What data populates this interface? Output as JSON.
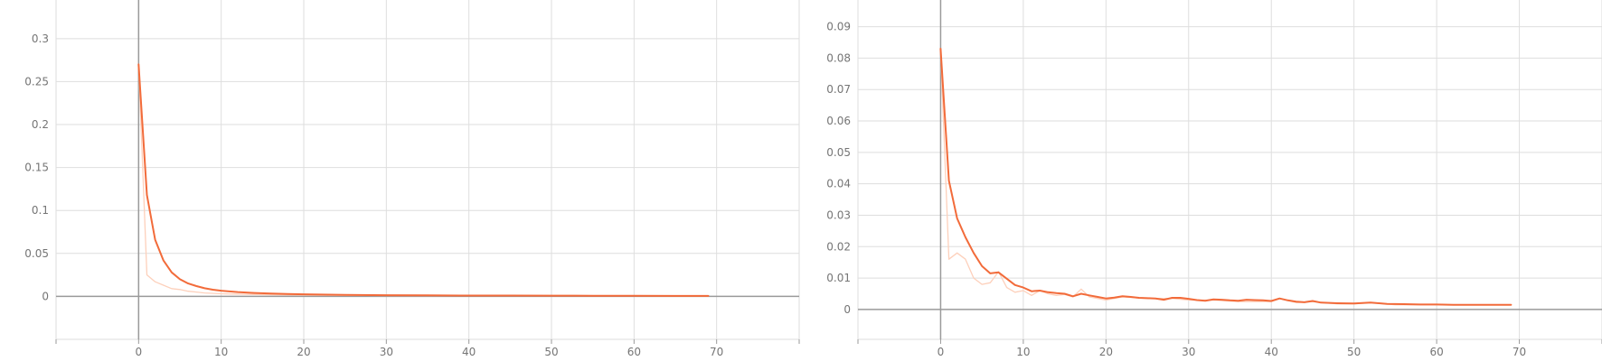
{
  "chart_data": [
    {
      "type": "line",
      "grid": true,
      "xlim": [
        -10,
        80
      ],
      "ylim": [
        -0.05,
        0.345
      ],
      "x_ticks": [
        0,
        10,
        20,
        30,
        40,
        50,
        60,
        70
      ],
      "y_ticks": [
        0,
        0.05,
        0.1,
        0.15,
        0.2,
        0.25,
        0.3
      ],
      "x_tick_labels": [
        "0",
        "10",
        "20",
        "30",
        "40",
        "50",
        "60",
        "70"
      ],
      "y_tick_labels": [
        "0",
        "0.05",
        "0.1",
        "0.15",
        "0.2",
        "0.25",
        "0.3"
      ],
      "series": [
        {
          "role": "raw",
          "color": "#fdd0bb",
          "x": [
            0,
            1,
            2,
            3,
            4,
            5,
            6,
            7,
            8,
            10,
            15,
            20,
            30,
            40,
            50,
            60,
            69
          ],
          "y": [
            0.27,
            0.025,
            0.017,
            0.013,
            0.009,
            0.008,
            0.006,
            0.005,
            0.004,
            0.003,
            0.002,
            0.0015,
            0.001,
            0.0008,
            0.0006,
            0.0005,
            0.0004
          ]
        },
        {
          "role": "smoothed",
          "color": "#f26b3a",
          "x": [
            0,
            1,
            2,
            3,
            4,
            5,
            6,
            7,
            8,
            9,
            10,
            12,
            14,
            16,
            18,
            20,
            25,
            30,
            35,
            40,
            45,
            50,
            55,
            60,
            65,
            69
          ],
          "y": [
            0.27,
            0.118,
            0.066,
            0.042,
            0.028,
            0.02,
            0.015,
            0.012,
            0.0095,
            0.0078,
            0.0066,
            0.005,
            0.004,
            0.0033,
            0.0028,
            0.0024,
            0.0018,
            0.0014,
            0.0012,
            0.001,
            0.0009,
            0.0008,
            0.0007,
            0.0006,
            0.0005,
            0.0005
          ]
        }
      ]
    },
    {
      "type": "line",
      "grid": true,
      "xlim": [
        -10,
        80
      ],
      "ylim": [
        -0.0095,
        0.0985
      ],
      "x_ticks": [
        0,
        10,
        20,
        30,
        40,
        50,
        60,
        70
      ],
      "y_ticks": [
        0,
        0.01,
        0.02,
        0.03,
        0.04,
        0.05,
        0.06,
        0.07,
        0.08,
        0.09
      ],
      "x_tick_labels": [
        "0",
        "10",
        "20",
        "30",
        "40",
        "50",
        "60",
        "70"
      ],
      "y_tick_labels": [
        "0",
        "0.01",
        "0.02",
        "0.03",
        "0.04",
        "0.05",
        "0.06",
        "0.07",
        "0.08",
        "0.09"
      ],
      "series": [
        {
          "role": "raw",
          "color": "#fdd0bb",
          "x": [
            0,
            1,
            2,
            3,
            4,
            5,
            6,
            7,
            8,
            9,
            10,
            11,
            12,
            13,
            14,
            15,
            16,
            17,
            18,
            19,
            20,
            22,
            25,
            28,
            30,
            33,
            36,
            40,
            41,
            43,
            45,
            48,
            50,
            52,
            55,
            60,
            65,
            69
          ],
          "y": [
            0.083,
            0.016,
            0.018,
            0.016,
            0.01,
            0.008,
            0.0085,
            0.012,
            0.007,
            0.0055,
            0.006,
            0.0045,
            0.006,
            0.005,
            0.0045,
            0.0048,
            0.004,
            0.0065,
            0.004,
            0.0035,
            0.003,
            0.004,
            0.0035,
            0.0035,
            0.003,
            0.003,
            0.0025,
            0.0025,
            0.0035,
            0.0022,
            0.0025,
            0.0018,
            0.0018,
            0.0022,
            0.0015,
            0.0015,
            0.0015,
            0.0015
          ]
        },
        {
          "role": "smoothed",
          "color": "#f26b3a",
          "x": [
            0,
            1,
            2,
            3,
            4,
            5,
            6,
            7,
            8,
            9,
            10,
            11,
            12,
            13,
            14,
            15,
            16,
            17,
            18,
            19,
            20,
            21,
            22,
            23,
            24,
            25,
            26,
            27,
            28,
            29,
            30,
            31,
            32,
            33,
            34,
            35,
            36,
            37,
            38,
            39,
            40,
            41,
            42,
            43,
            44,
            45,
            46,
            48,
            50,
            52,
            54,
            56,
            58,
            60,
            62,
            64,
            66,
            69
          ],
          "y": [
            0.083,
            0.041,
            0.029,
            0.023,
            0.018,
            0.0138,
            0.0115,
            0.0118,
            0.0098,
            0.0078,
            0.007,
            0.0058,
            0.006,
            0.0055,
            0.0052,
            0.005,
            0.0042,
            0.005,
            0.0045,
            0.004,
            0.0035,
            0.0038,
            0.0042,
            0.004,
            0.0037,
            0.0036,
            0.0035,
            0.0031,
            0.0037,
            0.0037,
            0.0034,
            0.003,
            0.0028,
            0.0032,
            0.0031,
            0.0029,
            0.0028,
            0.0031,
            0.003,
            0.0029,
            0.0027,
            0.0035,
            0.0029,
            0.0025,
            0.0023,
            0.0027,
            0.0022,
            0.002,
            0.0019,
            0.0022,
            0.0018,
            0.0017,
            0.0016,
            0.0016,
            0.0015,
            0.0015,
            0.0015,
            0.0015
          ]
        }
      ]
    }
  ]
}
